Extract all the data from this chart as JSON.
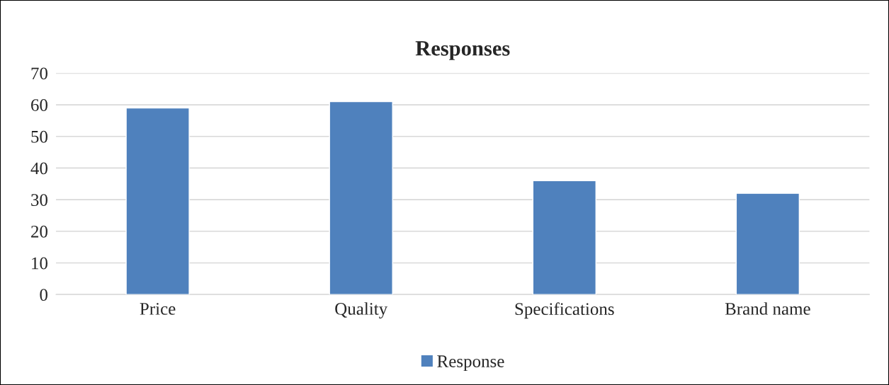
{
  "chart_data": {
    "type": "bar",
    "title": "Responses",
    "categories": [
      "Price",
      "Quality",
      "Specifications",
      "Brand name"
    ],
    "series": [
      {
        "name": "Response",
        "color": "#4f81bd",
        "values": [
          59,
          61,
          36,
          32
        ]
      }
    ],
    "ylim": [
      0,
      70
    ],
    "yticks": [
      0,
      10,
      20,
      30,
      40,
      50,
      60,
      70
    ],
    "grid": "y",
    "legend": "bottom"
  }
}
